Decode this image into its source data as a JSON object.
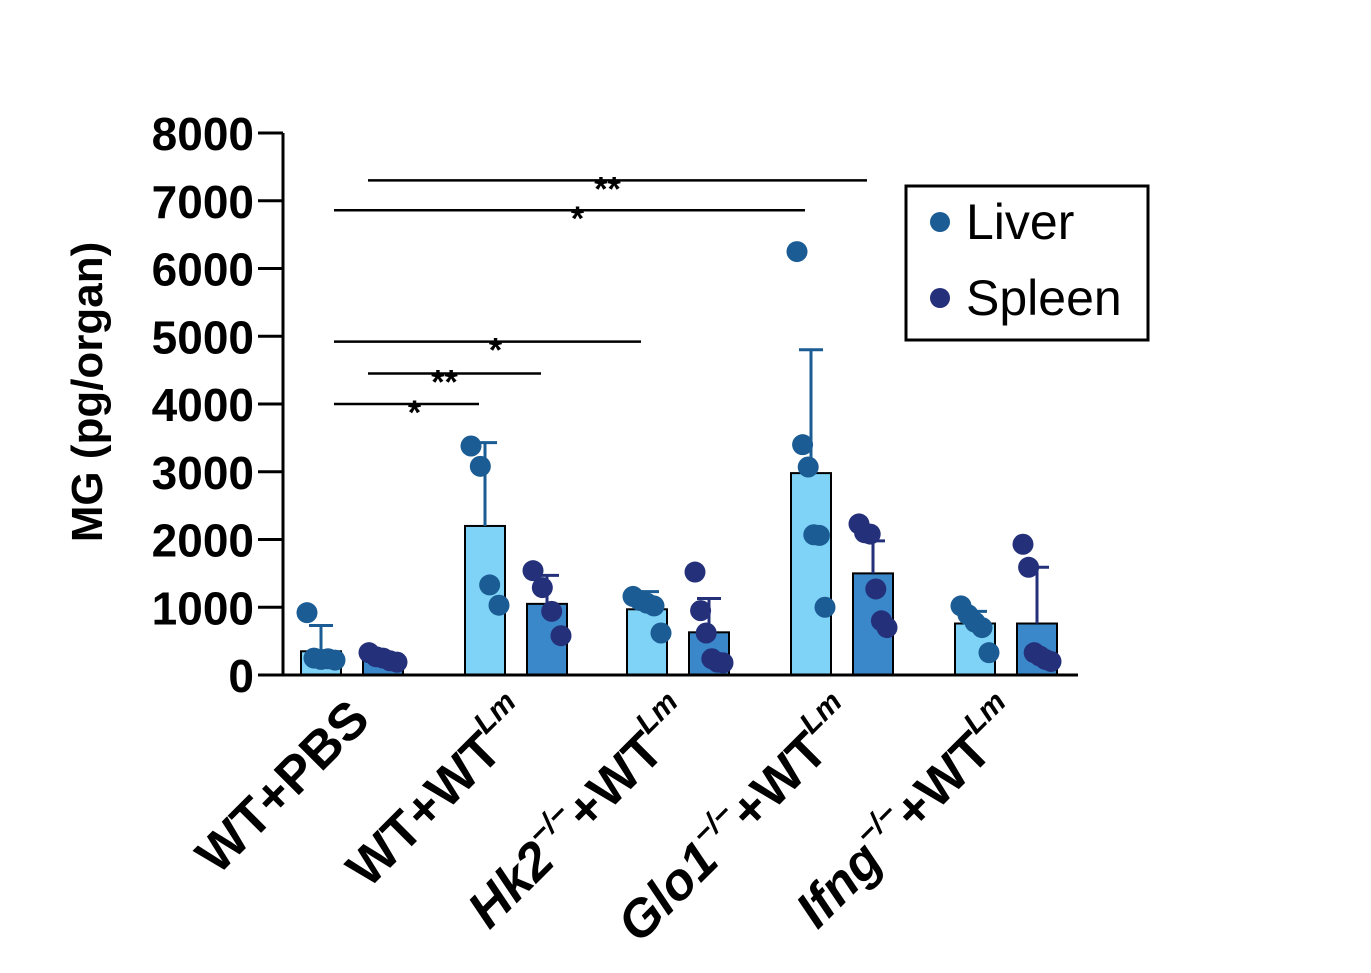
{
  "chart_data": {
    "type": "bar",
    "ylabel": "MG (pg/organ)",
    "ylim": [
      0,
      8000
    ],
    "yticks": [
      0,
      1000,
      2000,
      3000,
      4000,
      5000,
      6000,
      7000,
      8000
    ],
    "categories": [
      {
        "main": "WT+PBS",
        "italic_prefix": "",
        "prefix_sup": "",
        "suffix": "",
        "suffix_sup": ""
      },
      {
        "main": "",
        "italic_prefix": "",
        "prefix_sup": "",
        "suffix": "WT+WT",
        "suffix_sup": "Lm"
      },
      {
        "main": "",
        "italic_prefix": "Hk2",
        "prefix_sup": "−/−",
        "suffix": "+WT",
        "suffix_sup": "Lm"
      },
      {
        "main": "",
        "italic_prefix": "Glo1",
        "prefix_sup": "−/−",
        "suffix": "+WT",
        "suffix_sup": "Lm"
      },
      {
        "main": "",
        "italic_prefix": "Ifng",
        "prefix_sup": "−/−",
        "suffix": "+WT",
        "suffix_sup": "Lm"
      }
    ],
    "series": [
      {
        "name": "Liver",
        "bar_color": "#7fd3f7",
        "point_color": "#1a5c93",
        "error_color": "#1a5c93",
        "means": [
          350,
          2200,
          970,
          2980,
          760
        ],
        "errors": [
          380,
          1230,
          260,
          1820,
          180
        ],
        "points": [
          [
            920,
            250,
            230,
            240,
            220
          ],
          [
            3380,
            3080,
            1330,
            1030
          ],
          [
            1160,
            1100,
            1060,
            1020,
            620
          ],
          [
            6250,
            3400,
            3070,
            2070,
            2060,
            1000
          ],
          [
            1020,
            890,
            780,
            700,
            330
          ]
        ]
      },
      {
        "name": "Spleen",
        "bar_color": "#3a87c9",
        "point_color": "#24307a",
        "error_color": "#24307a",
        "means": [
          230,
          1050,
          630,
          1500,
          760
        ],
        "errors": [
          70,
          420,
          500,
          480,
          830
        ],
        "points": [
          [
            330,
            270,
            250,
            210,
            190
          ],
          [
            1540,
            1290,
            940,
            580
          ],
          [
            1520,
            950,
            620,
            240,
            190,
            180
          ],
          [
            2230,
            2100,
            2080,
            1270,
            800,
            700
          ],
          [
            1930,
            1590,
            330,
            280,
            230,
            200
          ]
        ]
      }
    ],
    "significance": [
      {
        "from_group": 0,
        "to_group": 1,
        "label": "*",
        "y": 4000
      },
      {
        "from_group": 0.8,
        "to_group": 1.5,
        "label": "**",
        "y": 4450
      },
      {
        "from_group": 0,
        "to_group": 2,
        "label": "*",
        "y": 4920
      },
      {
        "from_group": 0,
        "to_group": 3,
        "label": "*",
        "y": 6860
      },
      {
        "from_group": 0.8,
        "to_group": 3.5,
        "label": "**",
        "y": 7300
      }
    ],
    "legend": {
      "position": "top-right",
      "entries": [
        "Liver",
        "Spleen"
      ]
    }
  }
}
